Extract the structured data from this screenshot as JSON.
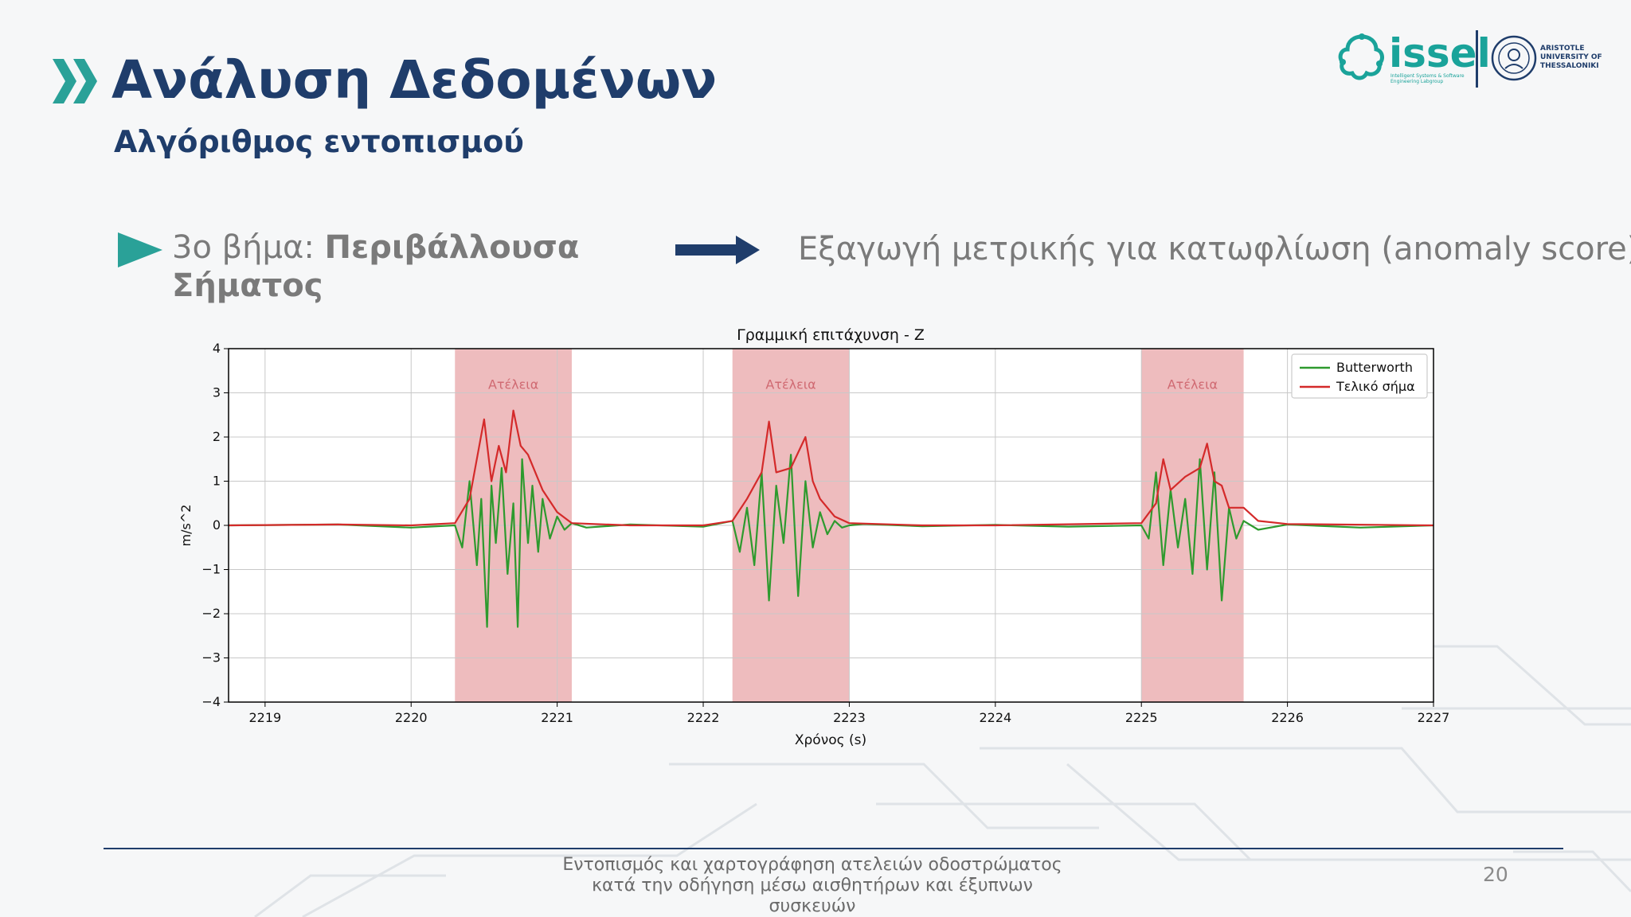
{
  "slide": {
    "title": "Ανάλυση Δεδομένων",
    "subtitle": "Αλγόριθμος εντοπισμού",
    "step_prefix": "3ο βήμα: ",
    "step_bold": "Περιβάλλουσα Σήματος",
    "result_text": "Εξαγωγή μετρικής για κατωφλίωση (anomaly score)",
    "footer": "Εντοπισμός και χαρτογράφηση ατελειών οδοστρώματος κατά την οδήγηση μέσω αισθητήρων και έξυπνων συσκευών",
    "page_number": "20",
    "accent_color": "#2aa198",
    "title_color": "#1f3d6b"
  },
  "logos": {
    "issel_name": "issel",
    "issel_tagline": "Intelligent Systems & Software Engineering Labgroup",
    "university": "ARISTOTLE UNIVERSITY OF THESSALONIKI"
  },
  "chart_data": {
    "type": "line",
    "title": "Γραμμική επιτάχυνση - Z",
    "xlabel": "Χρόνος (s)",
    "ylabel": "m/s^2",
    "xlim": [
      2218.75,
      2227
    ],
    "ylim": [
      -4,
      4
    ],
    "xticks": [
      2219,
      2220,
      2221,
      2222,
      2223,
      2224,
      2225,
      2226,
      2227
    ],
    "yticks": [
      -4,
      -3,
      -2,
      -1,
      0,
      1,
      2,
      3,
      4
    ],
    "ytick_labels": [
      "−4",
      "−3",
      "−2",
      "−1",
      "0",
      "1",
      "2",
      "3",
      "4"
    ],
    "grid": true,
    "legend_position": "top-right",
    "highlight_regions": [
      {
        "label": "Ατέλεια",
        "x": [
          2220.3,
          2221.1
        ],
        "color": "#e8a5a8"
      },
      {
        "label": "Ατέλεια",
        "x": [
          2222.2,
          2223.0
        ],
        "color": "#e8a5a8"
      },
      {
        "label": "Ατέλεια",
        "x": [
          2225.0,
          2225.7
        ],
        "color": "#e8a5a8"
      }
    ],
    "series": [
      {
        "name": "Butterworth",
        "color": "#2e9a2e",
        "x": [
          2218.75,
          2219.5,
          2220.0,
          2220.3,
          2220.35,
          2220.4,
          2220.45,
          2220.48,
          2220.52,
          2220.55,
          2220.58,
          2220.62,
          2220.66,
          2220.7,
          2220.73,
          2220.76,
          2220.8,
          2220.83,
          2220.87,
          2220.9,
          2220.95,
          2221.0,
          2221.05,
          2221.1,
          2221.2,
          2221.5,
          2222.0,
          2222.2,
          2222.25,
          2222.3,
          2222.35,
          2222.4,
          2222.45,
          2222.5,
          2222.55,
          2222.6,
          2222.65,
          2222.7,
          2222.75,
          2222.8,
          2222.85,
          2222.9,
          2222.95,
          2223.0,
          2223.1,
          2223.5,
          2224.0,
          2224.5,
          2225.0,
          2225.05,
          2225.1,
          2225.15,
          2225.2,
          2225.25,
          2225.3,
          2225.35,
          2225.4,
          2225.45,
          2225.5,
          2225.55,
          2225.6,
          2225.65,
          2225.7,
          2225.8,
          2226.0,
          2226.5,
          2227.0
        ],
        "y": [
          0,
          0.02,
          -0.05,
          0.0,
          -0.5,
          1.0,
          -0.9,
          0.6,
          -2.3,
          0.9,
          -0.4,
          1.3,
          -1.1,
          0.5,
          -2.3,
          1.5,
          -0.4,
          0.9,
          -0.6,
          0.6,
          -0.3,
          0.2,
          -0.1,
          0.05,
          -0.05,
          0.02,
          -0.03,
          0.1,
          -0.6,
          0.4,
          -0.9,
          1.2,
          -1.7,
          0.9,
          -0.4,
          1.6,
          -1.6,
          1.0,
          -0.5,
          0.3,
          -0.2,
          0.1,
          -0.05,
          0.0,
          0.03,
          -0.02,
          0.01,
          -0.03,
          0.0,
          -0.3,
          1.2,
          -0.9,
          0.8,
          -0.5,
          0.6,
          -1.1,
          1.5,
          -1.0,
          1.2,
          -1.7,
          0.4,
          -0.3,
          0.1,
          -0.1,
          0.02,
          -0.05,
          0.0
        ]
      },
      {
        "name": "Τελικό σήμα",
        "color": "#d42a2a",
        "x": [
          2218.75,
          2219.5,
          2220.0,
          2220.3,
          2220.4,
          2220.5,
          2220.55,
          2220.6,
          2220.65,
          2220.7,
          2220.75,
          2220.8,
          2220.9,
          2221.0,
          2221.1,
          2221.5,
          2222.0,
          2222.2,
          2222.3,
          2222.4,
          2222.45,
          2222.5,
          2222.6,
          2222.7,
          2222.75,
          2222.8,
          2222.9,
          2223.0,
          2223.5,
          2224.0,
          2225.0,
          2225.1,
          2225.15,
          2225.2,
          2225.3,
          2225.4,
          2225.45,
          2225.5,
          2225.55,
          2225.6,
          2225.7,
          2225.8,
          2226.0,
          2227.0
        ],
        "y": [
          0,
          0.02,
          0.0,
          0.05,
          0.6,
          2.4,
          1.0,
          1.8,
          1.2,
          2.6,
          1.8,
          1.6,
          0.8,
          0.3,
          0.05,
          0.0,
          0.0,
          0.1,
          0.6,
          1.2,
          2.35,
          1.2,
          1.3,
          2.0,
          1.0,
          0.6,
          0.2,
          0.05,
          0.0,
          0.0,
          0.05,
          0.5,
          1.5,
          0.8,
          1.1,
          1.3,
          1.85,
          1.0,
          0.9,
          0.4,
          0.4,
          0.1,
          0.03,
          0.0
        ]
      }
    ]
  }
}
